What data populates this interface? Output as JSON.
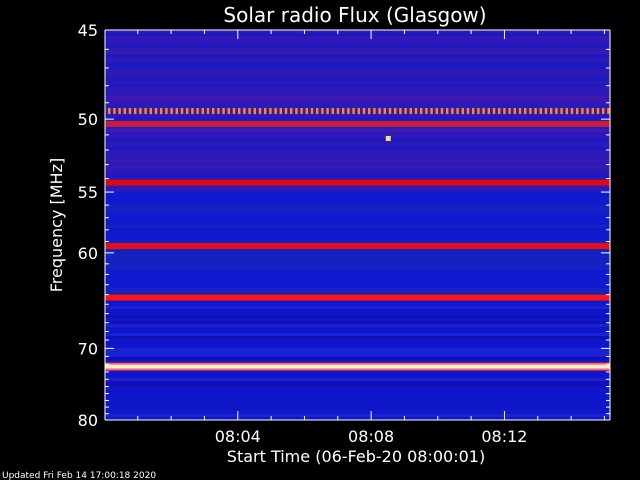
{
  "chart_data": {
    "type": "heatmap",
    "title": "Solar radio Flux (Glasgow)",
    "xlabel": "Start Time (06-Feb-20 08:00:01)",
    "ylabel": "Frequency [MHz]",
    "x_ticks": [
      "08:04",
      "08:08",
      "08:12"
    ],
    "x_range": [
      "08:00:01",
      "08:15:10"
    ],
    "y_ticks": [
      45,
      50,
      55,
      60,
      70,
      80
    ],
    "y_range": [
      45,
      80
    ],
    "y_scale": "inverse",
    "colormap": "blue-red-yellow-white",
    "background_color": "#1a1acd",
    "emission_bands": [
      {
        "freq_mhz": 49.5,
        "color": "#ff8a1a",
        "style": "dotted"
      },
      {
        "freq_mhz": 50.3,
        "color": "#c81a3a"
      },
      {
        "freq_mhz": 54.3,
        "color": "#d80a14"
      },
      {
        "freq_mhz": 59.4,
        "color": "#e80f18"
      },
      {
        "freq_mhz": 64.3,
        "color": "#ff1414"
      },
      {
        "freq_mhz": 72.3,
        "color": "#fff4c8",
        "peak": true
      }
    ],
    "point_features": [
      {
        "time": "08:08:30",
        "freq_mhz": 51.2,
        "color": "#ffe070"
      }
    ]
  },
  "footer": {
    "updated": "Updated Fri Feb 14 17:00:18 2020"
  }
}
